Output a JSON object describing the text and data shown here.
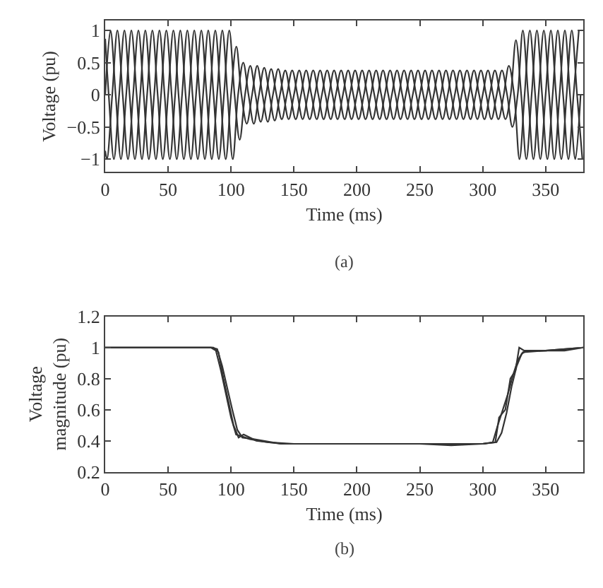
{
  "chart_data": [
    {
      "type": "line",
      "xlabel": "Time (ms)",
      "ylabel": "Voltage (pu)",
      "annotations": [
        "(a)"
      ],
      "xlim": [
        0,
        380
      ],
      "xticks": [
        0,
        50,
        100,
        150,
        200,
        250,
        300,
        350
      ],
      "ylim": [
        -1.2,
        1.15
      ],
      "yticks": [
        {
          "value": -1,
          "label": "−1"
        },
        {
          "value": -0.5,
          "label": "−0.5"
        },
        0,
        0.5,
        1
      ],
      "marker": "none",
      "line_style": "solid",
      "series": [
        {
          "color": "#333333",
          "x": [
            0,
            4.2,
            8.3,
            12.5,
            16.7,
            20.8,
            25,
            29.2,
            33.3,
            37.5,
            41.7,
            45.8,
            50,
            54.2,
            58.3,
            62.5,
            66.7,
            70.8,
            75,
            79.2,
            83.3,
            87.5,
            91.7,
            95.8,
            100,
            104.2,
            108.3,
            112.5,
            116.7,
            120.8,
            125,
            129.2,
            133.3,
            137.5,
            141.7,
            145.8,
            150,
            154.2,
            158.3,
            162.5,
            166.7,
            170.8,
            175,
            179.2,
            183.3,
            187.5,
            191.7,
            195.8,
            200,
            204.2,
            208.3,
            212.5,
            216.7,
            220.8,
            225,
            229.2,
            233.3,
            237.5,
            241.7,
            245.8,
            250,
            254.2,
            258.3,
            262.5,
            266.7,
            270.8,
            275,
            279.2,
            283.3,
            287.5,
            291.7,
            295.8,
            300,
            304.2,
            308.3,
            312.5,
            316.7,
            320.8,
            325,
            329.2,
            333.3,
            337.5,
            341.7,
            345.8,
            350,
            354.2,
            358.3,
            362.5,
            366.7,
            370.8,
            375,
            379.2
          ],
          "values": [
            0,
            1,
            0,
            -1,
            0,
            1,
            0,
            -1,
            0,
            1,
            0,
            -1,
            0,
            1,
            0,
            -1,
            0,
            1,
            0,
            -1,
            0,
            1,
            0,
            -1,
            0,
            0.75,
            0,
            -0.45,
            0,
            0.45,
            0,
            -0.42,
            0,
            0.4,
            0,
            -0.38,
            0,
            0.38,
            0,
            -0.38,
            0,
            0.38,
            0,
            -0.38,
            0,
            0.38,
            0,
            -0.38,
            0,
            0.38,
            0,
            -0.38,
            0,
            0.38,
            0,
            -0.38,
            0,
            0.38,
            0,
            -0.38,
            0,
            0.38,
            0,
            -0.38,
            0,
            0.38,
            0,
            -0.38,
            0,
            0.38,
            0,
            -0.38,
            0,
            0.38,
            0,
            -0.38,
            0,
            0.45,
            0,
            -1,
            0,
            1,
            0,
            -1,
            0,
            1,
            0,
            -1,
            0,
            1,
            0,
            -1
          ]
        },
        {
          "color": "#333333",
          "x": [
            0,
            1.4,
            5.6,
            9.7,
            13.9,
            18.1,
            22.2,
            26.4,
            30.6,
            34.7,
            38.9,
            43.1,
            47.2,
            51.4,
            55.6,
            59.7,
            63.9,
            68.1,
            72.2,
            76.4,
            80.6,
            84.7,
            88.9,
            93.1,
            97.2,
            101.4,
            105.6,
            109.7,
            113.9,
            118.1,
            122.2,
            126.4,
            130.6,
            134.7,
            138.9,
            143.1,
            147.2,
            151.4,
            155.6,
            159.7,
            163.9,
            168.1,
            172.2,
            176.4,
            180.6,
            184.7,
            188.9,
            193.1,
            197.2,
            201.4,
            205.6,
            209.7,
            213.9,
            218.1,
            222.2,
            226.4,
            230.6,
            234.7,
            238.9,
            243.1,
            247.2,
            251.4,
            255.6,
            259.7,
            263.9,
            268.1,
            272.2,
            276.4,
            280.6,
            284.7,
            288.9,
            293.1,
            297.2,
            301.4,
            305.6,
            309.7,
            313.9,
            318.1,
            322.2,
            326.4,
            330.6,
            334.7,
            338.9,
            343.1,
            347.2,
            351.4,
            355.6,
            359.7,
            363.9,
            368.1,
            372.2,
            376.4
          ],
          "values": [
            -0.87,
            -1,
            0,
            1,
            0,
            -1,
            0,
            1,
            0,
            -1,
            0,
            1,
            0,
            -1,
            0,
            1,
            0,
            -1,
            0,
            1,
            0,
            -1,
            0,
            1,
            0,
            -1,
            0,
            0.5,
            0,
            -0.45,
            0,
            0.42,
            0,
            -0.4,
            0,
            0.38,
            0,
            -0.38,
            0,
            0.38,
            0,
            -0.38,
            0,
            0.38,
            0,
            -0.38,
            0,
            0.38,
            0,
            -0.38,
            0,
            0.38,
            0,
            -0.38,
            0,
            0.38,
            0,
            -0.38,
            0,
            0.38,
            0,
            -0.38,
            0,
            0.38,
            0,
            -0.38,
            0,
            0.38,
            0,
            -0.38,
            0,
            0.38,
            0,
            -0.38,
            0,
            0.38,
            0,
            -0.38,
            0,
            0.85,
            0,
            -1,
            0,
            1,
            0,
            -1,
            0,
            1,
            0,
            -1,
            0,
            1
          ]
        },
        {
          "color": "#333333",
          "x": [
            0,
            2.8,
            6.9,
            11.1,
            15.3,
            19.4,
            23.6,
            27.8,
            31.9,
            36.1,
            40.3,
            44.4,
            48.6,
            52.8,
            56.9,
            61.1,
            65.3,
            69.4,
            73.6,
            77.8,
            81.9,
            86.1,
            90.3,
            94.4,
            98.6,
            102.8,
            106.9,
            111.1,
            115.3,
            119.4,
            123.6,
            127.8,
            131.9,
            136.1,
            140.3,
            144.4,
            148.6,
            152.8,
            156.9,
            161.1,
            165.3,
            169.4,
            173.6,
            177.8,
            181.9,
            186.1,
            190.3,
            194.4,
            198.6,
            202.8,
            206.9,
            211.1,
            215.3,
            219.4,
            223.6,
            227.8,
            231.9,
            236.1,
            240.3,
            244.4,
            248.6,
            252.8,
            256.9,
            261.1,
            265.3,
            269.4,
            273.6,
            277.8,
            281.9,
            286.1,
            290.3,
            294.4,
            298.6,
            302.8,
            306.9,
            311.1,
            315.3,
            319.4,
            323.6,
            327.8,
            331.9,
            336.1,
            340.3,
            344.4,
            348.6,
            352.8,
            356.9,
            361.1,
            365.3,
            369.4,
            373.6,
            377.8
          ],
          "values": [
            0.87,
            0,
            -1,
            0,
            1,
            0,
            -1,
            0,
            1,
            0,
            -1,
            0,
            1,
            0,
            -1,
            0,
            1,
            0,
            -1,
            0,
            1,
            0,
            -1,
            0,
            1,
            0,
            -0.7,
            0,
            0.45,
            0,
            -0.42,
            0,
            0.4,
            0,
            -0.38,
            0,
            0.38,
            0,
            -0.38,
            0,
            0.38,
            0,
            -0.38,
            0,
            0.38,
            0,
            -0.38,
            0,
            0.38,
            0,
            -0.38,
            0,
            0.38,
            0,
            -0.38,
            0,
            0.38,
            0,
            -0.38,
            0,
            0.38,
            0,
            -0.38,
            0,
            0.38,
            0,
            -0.38,
            0,
            0.38,
            0,
            -0.38,
            0,
            0.38,
            0,
            -0.38,
            0,
            0.38,
            0,
            -0.5,
            0,
            1,
            0,
            -1,
            0,
            1,
            0,
            -1,
            0,
            1,
            0,
            -1,
            0
          ]
        }
      ]
    },
    {
      "type": "line",
      "xlabel": "Time (ms)",
      "ylabel": "Voltage\nmagnitude (pu)",
      "annotations": [
        "(b)"
      ],
      "xlim": [
        0,
        380
      ],
      "xticks": [
        0,
        50,
        100,
        150,
        200,
        250,
        300,
        350
      ],
      "ylim": [
        0.2,
        1.2
      ],
      "yticks": [
        0.2,
        0.4,
        0.6,
        0.8,
        1,
        1.2
      ],
      "marker": "none",
      "line_style": "solid",
      "series": [
        {
          "color": "#333333",
          "x": [
            0,
            84,
            88,
            92,
            96,
            100,
            104,
            108,
            115,
            130,
            150,
            200,
            250,
            275,
            300,
            308,
            312,
            316,
            320,
            324,
            328,
            332,
            350,
            365,
            380
          ],
          "values": [
            1,
            1,
            0.98,
            0.85,
            0.7,
            0.55,
            0.44,
            0.43,
            0.41,
            0.39,
            0.38,
            0.38,
            0.38,
            0.37,
            0.38,
            0.39,
            0.5,
            0.6,
            0.7,
            0.82,
            0.92,
            0.97,
            0.98,
            0.98,
            1
          ]
        },
        {
          "color": "#333333",
          "x": [
            0,
            86,
            90,
            94,
            98,
            102,
            106,
            110,
            120,
            140,
            200,
            250,
            300,
            310,
            313,
            318,
            322,
            326,
            329,
            333,
            350,
            380
          ],
          "values": [
            1,
            1,
            0.97,
            0.8,
            0.65,
            0.5,
            0.42,
            0.44,
            0.4,
            0.38,
            0.38,
            0.38,
            0.38,
            0.39,
            0.55,
            0.6,
            0.8,
            0.85,
            1,
            0.98,
            0.98,
            1
          ]
        },
        {
          "color": "#333333",
          "x": [
            0,
            85,
            89,
            93,
            97,
            101,
            105,
            109,
            118,
            140,
            200,
            250,
            300,
            311,
            315,
            319,
            323,
            327,
            331,
            335,
            350,
            380
          ],
          "values": [
            1,
            1,
            0.99,
            0.88,
            0.74,
            0.6,
            0.47,
            0.42,
            0.41,
            0.38,
            0.38,
            0.38,
            0.38,
            0.39,
            0.45,
            0.58,
            0.75,
            0.88,
            0.96,
            0.98,
            0.98,
            1
          ]
        }
      ]
    }
  ]
}
